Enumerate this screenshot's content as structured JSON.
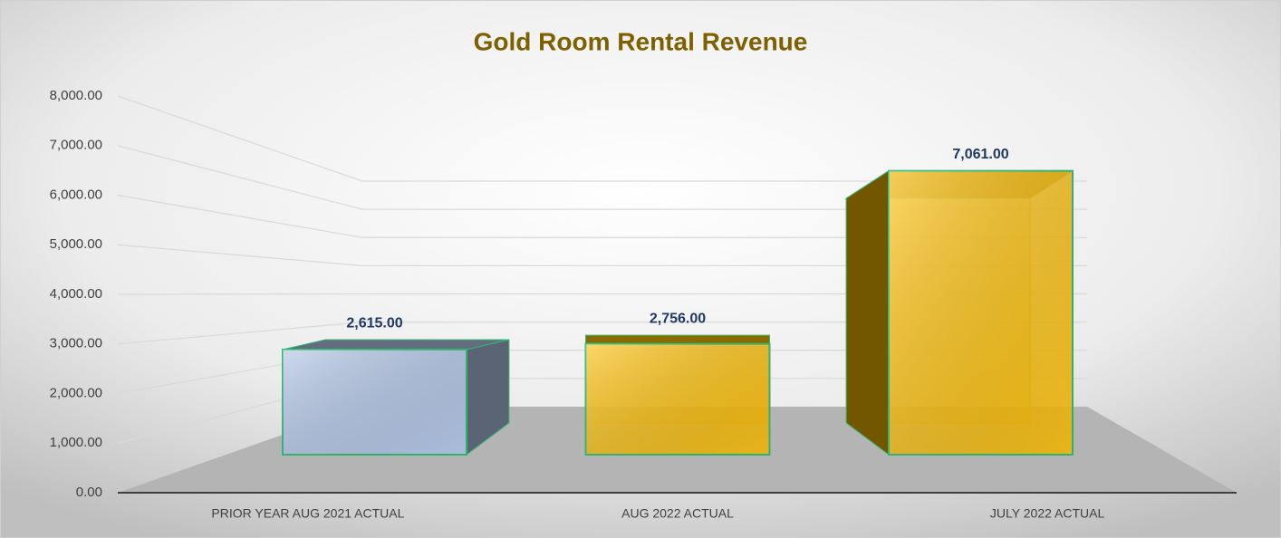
{
  "chart_data": {
    "type": "bar3d",
    "title": "Gold Room Rental Revenue",
    "categories": [
      "PRIOR YEAR AUG 2021 ACTUAL",
      "AUG 2022 ACTUAL",
      "JULY 2022 ACTUAL"
    ],
    "values": [
      2615,
      2756,
      7061
    ],
    "value_labels": [
      "2,615.00",
      "2,756.00",
      "7,061.00"
    ],
    "colors": [
      "#b4c7e7",
      "#ffc000",
      "#ffc000"
    ],
    "ylim": [
      0,
      8000
    ],
    "yticks": [
      {
        "value": 0,
        "label": "0.00"
      },
      {
        "value": 1000,
        "label": "1,000.00"
      },
      {
        "value": 2000,
        "label": "2,000.00"
      },
      {
        "value": 3000,
        "label": "3,000.00"
      },
      {
        "value": 4000,
        "label": "4,000.00"
      },
      {
        "value": 5000,
        "label": "5,000.00"
      },
      {
        "value": 6000,
        "label": "6,000.00"
      },
      {
        "value": 7000,
        "label": "7,000.00"
      },
      {
        "value": 8000,
        "label": "8,000.00"
      }
    ],
    "grid": true
  }
}
